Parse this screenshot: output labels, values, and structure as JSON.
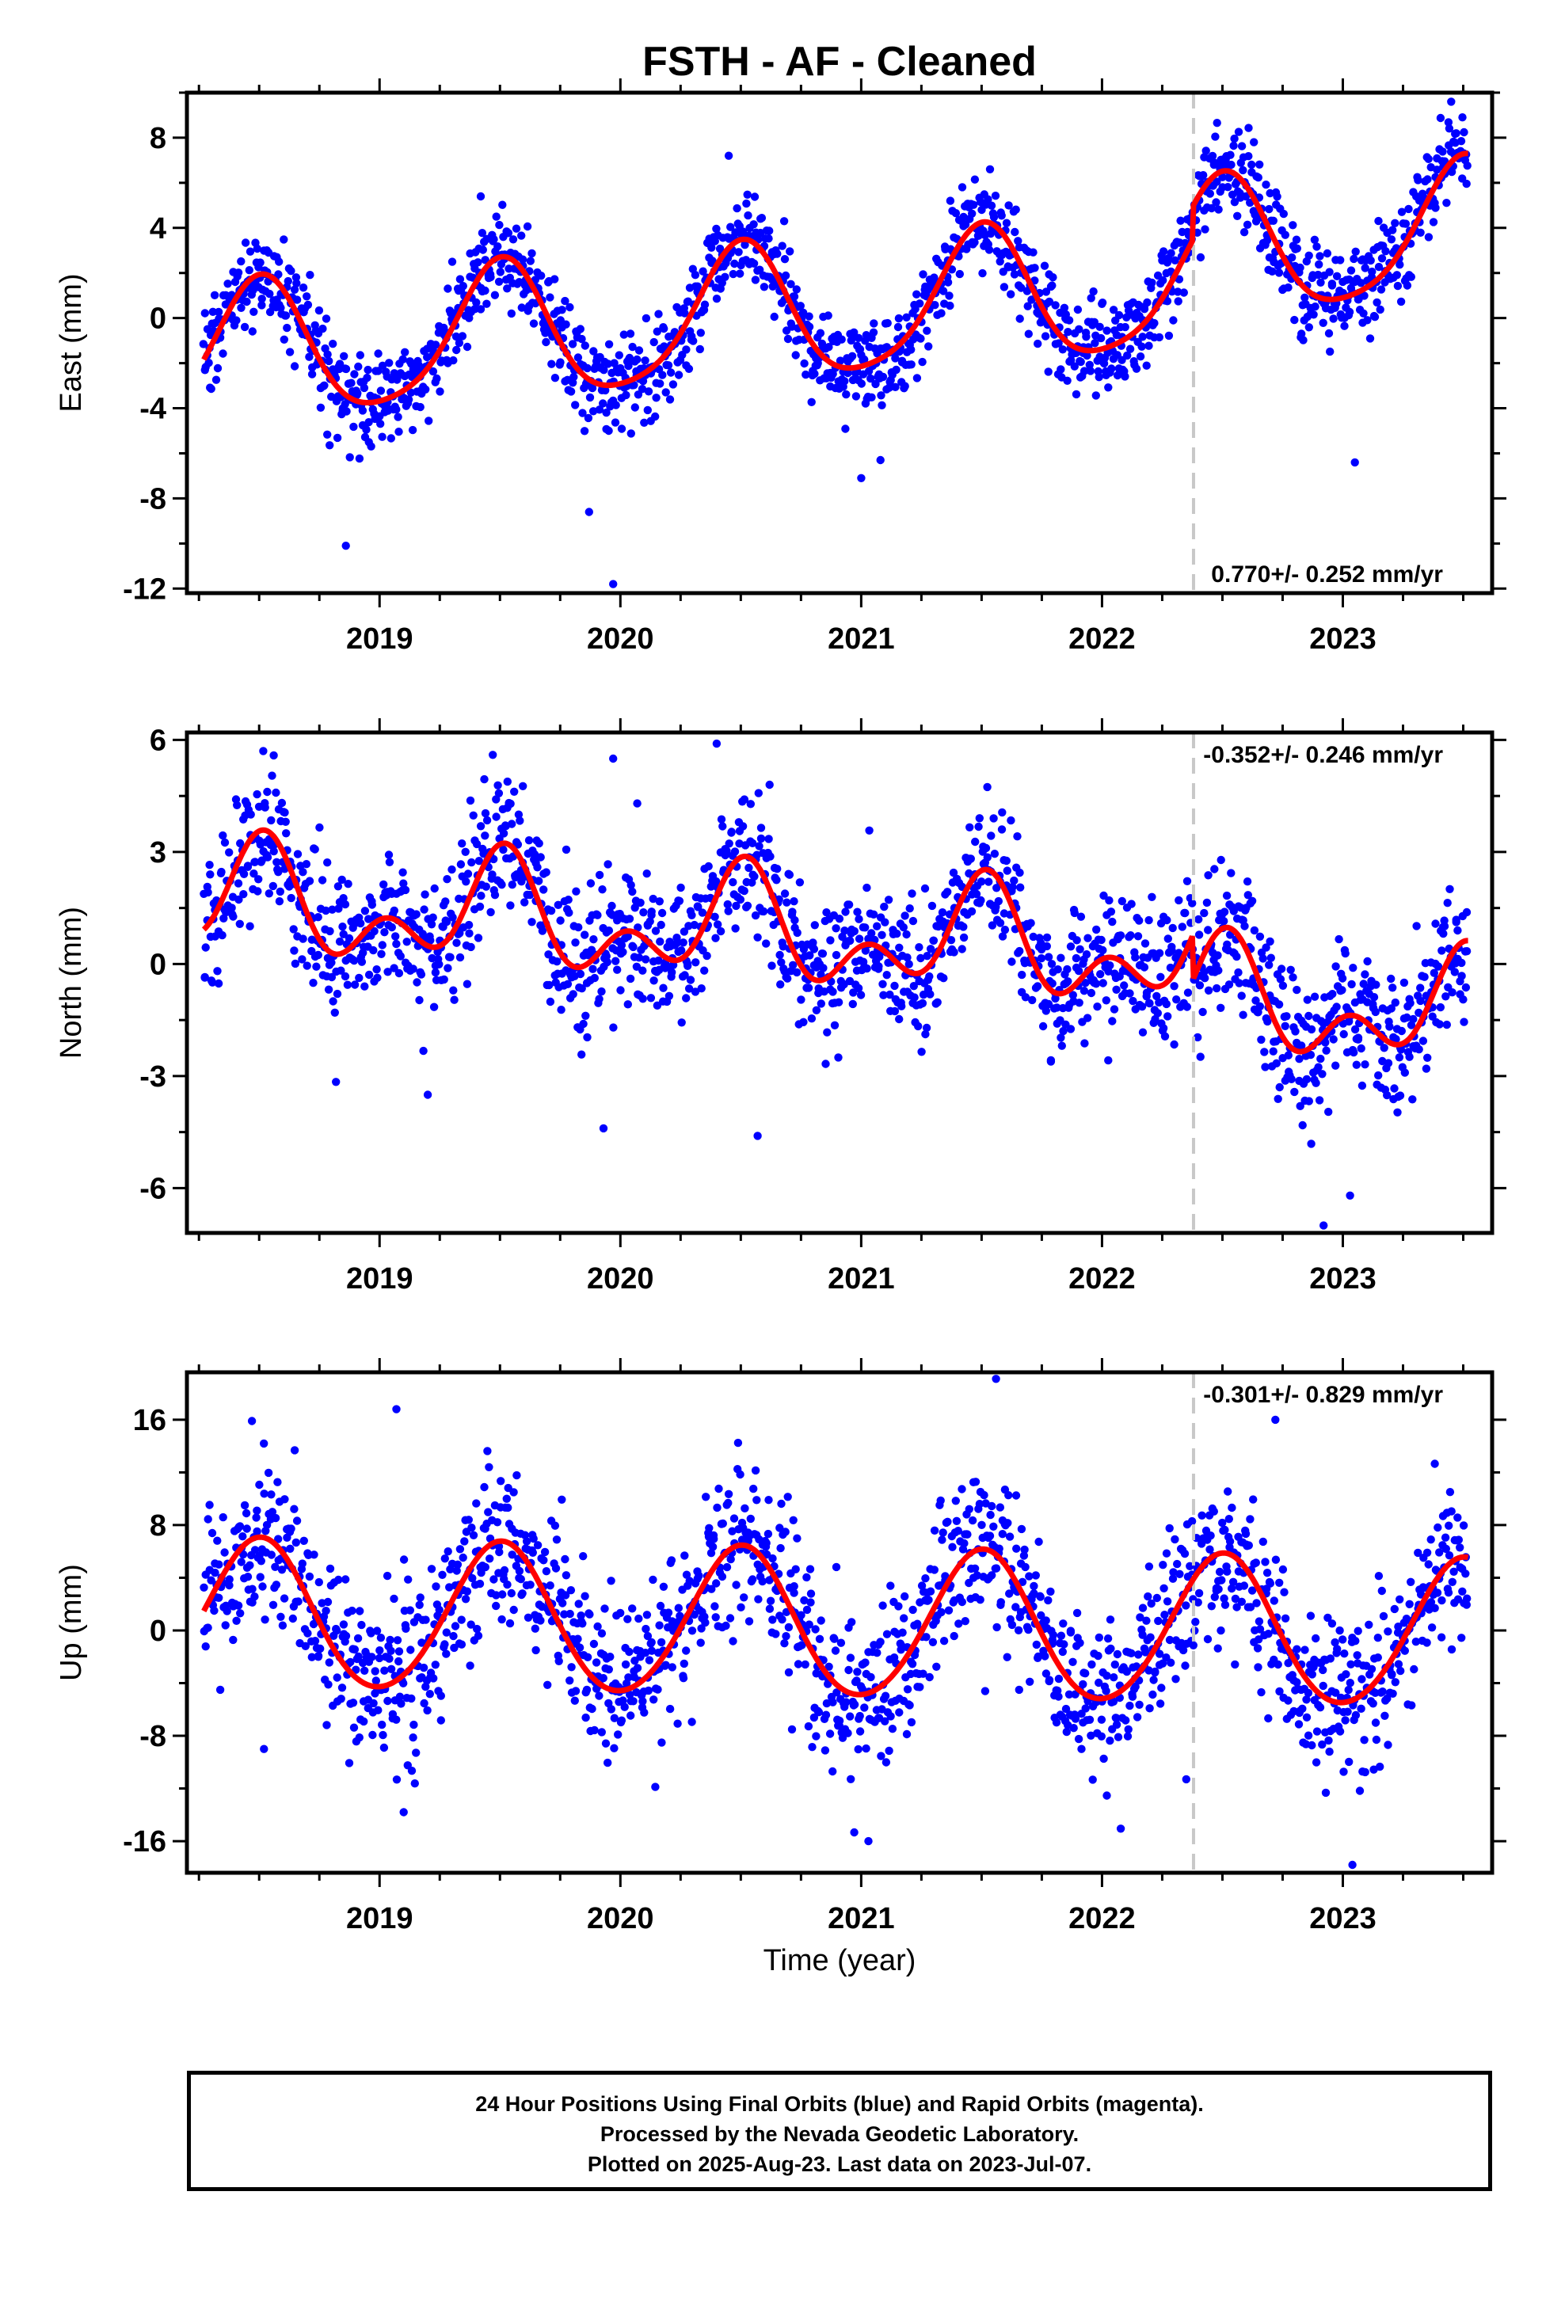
{
  "title": "FSTH  - AF - Cleaned",
  "xlabel": "Time (year)",
  "x_tick_labels": [
    "2019",
    "2020",
    "2021",
    "2022",
    "2023"
  ],
  "footer": {
    "line1": "24 Hour Positions Using Final Orbits (blue) and Rapid Orbits (magenta).",
    "line2": "Processed by the Nevada Geodetic Laboratory.",
    "line3": "Plotted on 2025-Aug-23. Last data on 2023-Jul-07."
  },
  "colors": {
    "points": "#0000ff",
    "fit": "#ff0000",
    "event_line": "#c8c8c8",
    "axes": "#000000"
  },
  "chart_data": [
    {
      "type": "scatter",
      "panel": "east",
      "ylabel": "East (mm)",
      "rate_label": "0.770+/- 0.252 mm/yr",
      "rate_position": "bottom-right",
      "ylim": [
        -12.2,
        10.0
      ],
      "xlim": [
        2018.2,
        2023.62
      ],
      "y_ticks": [
        -12,
        -8,
        -4,
        0,
        4,
        8
      ],
      "y_tick_labels": [
        "-12",
        "-8",
        "-4",
        "0",
        "4",
        "8"
      ],
      "event_line_x": 2022.38,
      "data_start": 2018.27,
      "data_end": 2023.52,
      "fit": {
        "intercept": 0.0,
        "rate": 0.77,
        "annual_amp": 3.0,
        "semiannual_amp": 0.5,
        "offset_at_event": 1.5
      },
      "series": [
        {
          "name": "24 Hour Positions",
          "style": "points",
          "scatter_sd": 1.05
        },
        {
          "name": "fit",
          "style": "line"
        }
      ],
      "outliers": [
        [
          2018.86,
          -10.1
        ],
        [
          2019.87,
          -8.6
        ],
        [
          2019.97,
          -11.8
        ],
        [
          2020.45,
          7.2
        ],
        [
          2020.68,
          4.3
        ],
        [
          2023.45,
          9.6
        ],
        [
          2021.0,
          -7.1
        ],
        [
          2021.08,
          -6.3
        ],
        [
          2023.05,
          -6.4
        ],
        [
          2019.42,
          5.4
        ],
        [
          2021.37,
          5.2
        ]
      ]
    },
    {
      "type": "scatter",
      "panel": "north",
      "ylabel": "North (mm)",
      "rate_label": "-0.352+/- 0.246 mm/yr",
      "rate_position": "top-right",
      "ylim": [
        -7.2,
        6.2
      ],
      "xlim": [
        2018.2,
        2023.62
      ],
      "y_ticks": [
        -6,
        -3,
        0,
        3,
        6
      ],
      "y_tick_labels": [
        "-6",
        "-3",
        "0",
        "3",
        "6"
      ],
      "event_line_x": 2022.38,
      "data_start": 2018.27,
      "data_end": 2023.52,
      "fit": {
        "intercept": 0.9,
        "rate": -0.352,
        "annual_amp": 1.1,
        "semiannual_amp": 0.9,
        "offset_at_event": -1.2
      },
      "series": [
        {
          "name": "24 Hour Positions",
          "style": "points",
          "scatter_sd": 0.95
        },
        {
          "name": "fit",
          "style": "line"
        }
      ],
      "outliers": [
        [
          2019.47,
          5.6
        ],
        [
          2019.97,
          5.5
        ],
        [
          2020.4,
          5.9
        ],
        [
          2019.93,
          -4.4
        ],
        [
          2020.57,
          -4.6
        ],
        [
          2022.92,
          -7.0
        ],
        [
          2023.03,
          -6.2
        ],
        [
          2020.07,
          4.3
        ],
        [
          2019.2,
          -3.5
        ]
      ]
    },
    {
      "type": "scatter",
      "panel": "up",
      "ylabel": "Up (mm)",
      "rate_label": "-0.301+/- 0.829 mm/yr",
      "rate_position": "top-right",
      "ylim": [
        -18.4,
        19.6
      ],
      "xlim": [
        2018.2,
        2023.62
      ],
      "y_ticks": [
        -16,
        -8,
        0,
        8,
        16
      ],
      "y_tick_labels": [
        "-16",
        "-8",
        "0",
        "8",
        "16"
      ],
      "event_line_x": 2022.38,
      "data_start": 2018.27,
      "data_end": 2023.52,
      "fit": {
        "intercept": 0.5,
        "rate": -0.301,
        "annual_amp": 5.6,
        "semiannual_amp": 0.4,
        "offset_at_event": 0.0
      },
      "series": [
        {
          "name": "24 Hour Positions",
          "style": "points",
          "scatter_sd": 3.1
        },
        {
          "name": "fit",
          "style": "line"
        }
      ],
      "outliers": [
        [
          2018.47,
          15.9
        ],
        [
          2019.07,
          16.8
        ],
        [
          2019.1,
          -13.8
        ],
        [
          2021.03,
          -16.0
        ],
        [
          2021.56,
          19.1
        ],
        [
          2022.72,
          16.0
        ],
        [
          2023.04,
          -17.8
        ],
        [
          2022.35,
          -11.3
        ],
        [
          2018.52,
          -9.0
        ]
      ]
    }
  ]
}
